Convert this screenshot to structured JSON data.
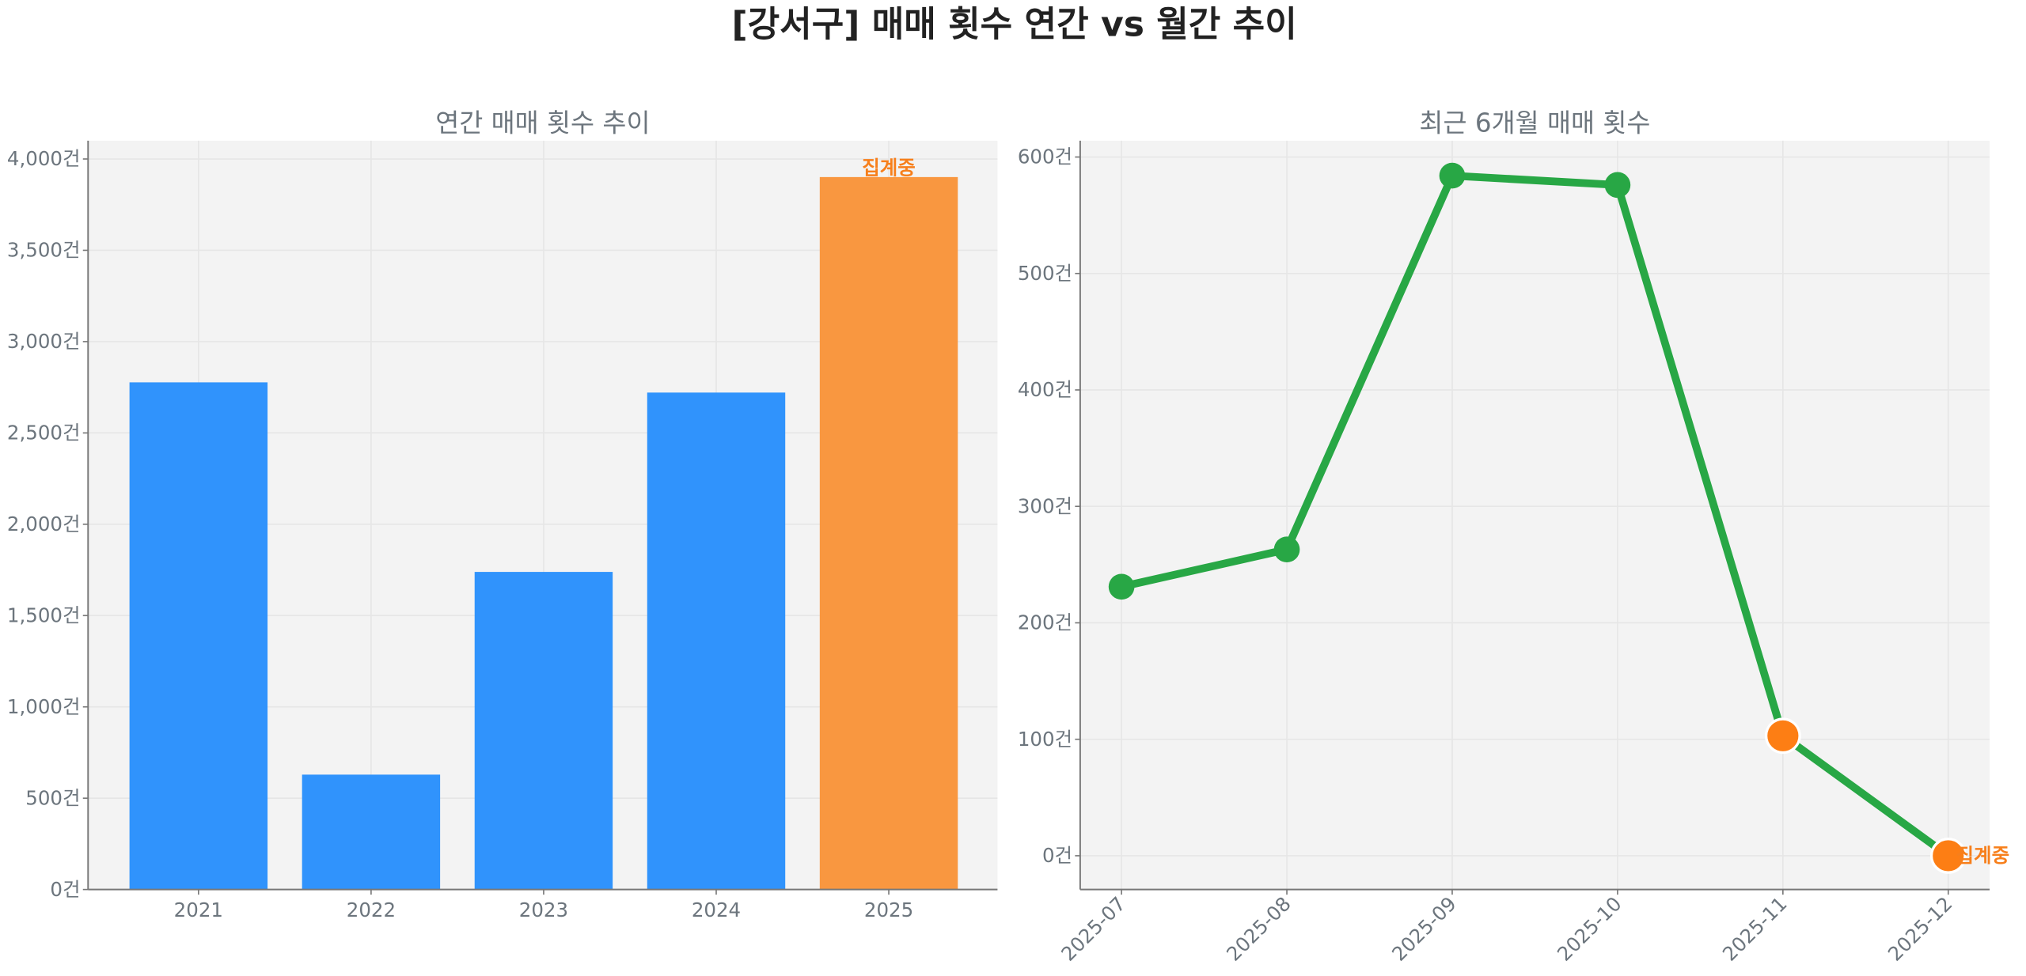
{
  "title": "[강서구] 매매 횟수 연간 vs 월간 추이",
  "colors": {
    "bar": "#3093fc",
    "bar_highlight": "#f99740",
    "line": "#28a745",
    "marker_highlight": "#fd7e14",
    "annotation": "#f77f1b",
    "plot_bg": "#f3f3f3",
    "grid": "#e6e6e6",
    "text": "#6c757d"
  },
  "chart_data": [
    {
      "type": "bar",
      "title": "연간 매매 횟수 추이",
      "categories": [
        "2021",
        "2022",
        "2023",
        "2024",
        "2025"
      ],
      "values": [
        2777,
        629,
        1739,
        2721,
        3901
      ],
      "highlight_index": 4,
      "annotation": "집계중",
      "yticks": [
        0,
        500,
        1000,
        1500,
        2000,
        2500,
        3000,
        3500,
        4000
      ],
      "ytick_labels": [
        "0건",
        "500건",
        "1,000건",
        "1,500건",
        "2,000건",
        "2,500건",
        "3,000건",
        "3,500건",
        "4,000건"
      ],
      "ylim": [
        0,
        4100
      ],
      "grid": true
    },
    {
      "type": "line",
      "title": "최근 6개월 매매 횟수",
      "categories": [
        "2025-07",
        "2025-08",
        "2025-09",
        "2025-10",
        "2025-11",
        "2025-12"
      ],
      "values": [
        231,
        263,
        584,
        576,
        103,
        0
      ],
      "highlight_indices": [
        4,
        5
      ],
      "annotation": "집계중",
      "yticks": [
        0,
        100,
        200,
        300,
        400,
        500,
        600
      ],
      "ytick_labels": [
        "0건",
        "100건",
        "200건",
        "300건",
        "400건",
        "500건",
        "600건"
      ],
      "ylim": [
        -29,
        614
      ],
      "grid": true
    }
  ]
}
